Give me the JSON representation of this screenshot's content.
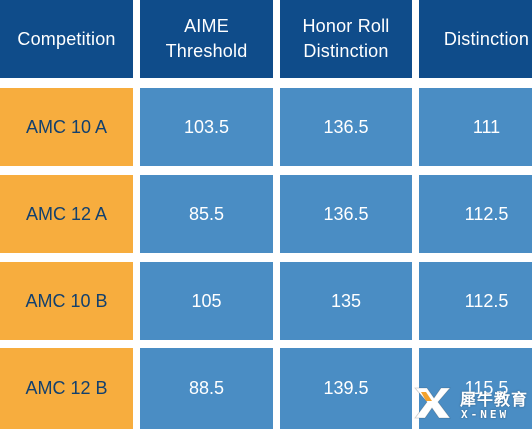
{
  "table": {
    "header": {
      "col1": [
        "Competition"
      ],
      "col2": [
        "AIME",
        "Threshold"
      ],
      "col3": [
        "Honor Roll",
        "Distinction"
      ],
      "col4": [
        "Distinction"
      ]
    },
    "rows": [
      {
        "competition": "AMC 10 A",
        "aime": "103.5",
        "honor_roll": "136.5",
        "distinction": "111"
      },
      {
        "competition": "AMC 12 A",
        "aime": "85.5",
        "honor_roll": "136.5",
        "distinction": "112.5"
      },
      {
        "competition": "AMC 10 B",
        "aime": "105",
        "honor_roll": "135",
        "distinction": "112.5"
      },
      {
        "competition": "AMC 12 B",
        "aime": "88.5",
        "honor_roll": "139.5",
        "distinction": "115.5"
      }
    ]
  },
  "colors": {
    "header_bg": "#0f4c8a",
    "label_bg": "#f7ad3e",
    "value_bg": "#4a8dc4",
    "label_text": "#12406e"
  },
  "watermark": {
    "cn": "犀牛教育",
    "en": "X-NEW",
    "icon": "x-new-logo-icon"
  }
}
